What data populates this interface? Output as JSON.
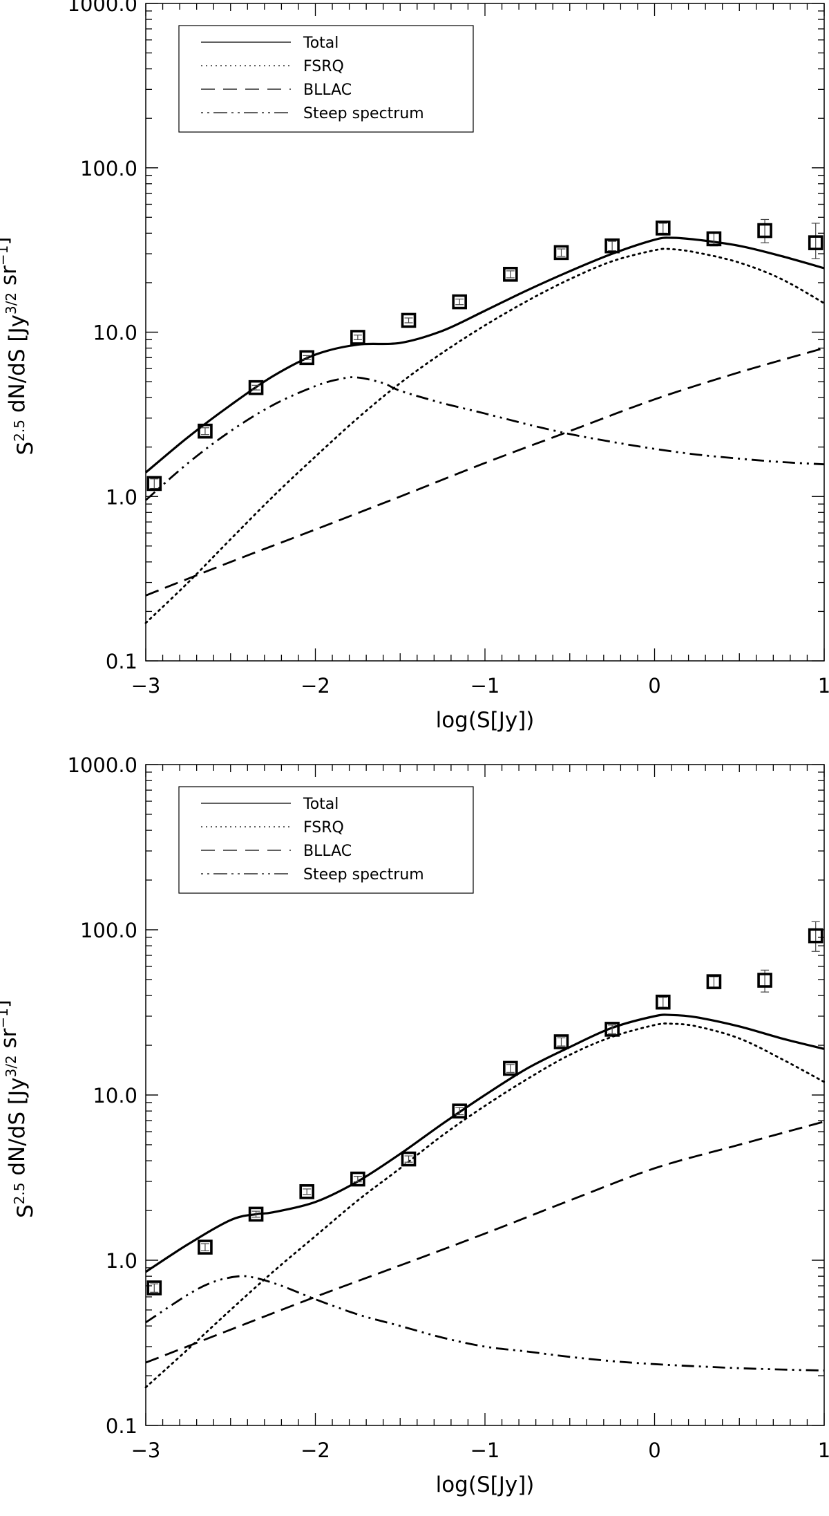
{
  "chart_data": [
    {
      "type": "line",
      "xlabel": "log(S[Jy])",
      "ylabel": "S^2.5 dN/dS [Jy^3/2 sr^-1]",
      "xlim": [
        -3,
        1
      ],
      "ylim": [
        0.1,
        1000
      ],
      "yscale": "log",
      "x_ticks": [
        "−3",
        "−2",
        "−1",
        "0",
        "1"
      ],
      "y_ticks": [
        "1000.0",
        "100.0",
        "10.0",
        "1.0",
        "0.1"
      ],
      "legend_position": "top-left",
      "grid": false,
      "series": [
        {
          "name": "Total",
          "style": "solid",
          "x": [
            -3.0,
            -2.75,
            -2.5,
            -2.25,
            -2.0,
            -1.75,
            -1.5,
            -1.25,
            -1.0,
            -0.75,
            -0.5,
            -0.25,
            0.0,
            0.1,
            0.25,
            0.5,
            0.75,
            1.0
          ],
          "y": [
            1.4,
            2.3,
            3.6,
            5.4,
            7.3,
            8.4,
            8.6,
            10.2,
            13.5,
            18.0,
            23.5,
            30.0,
            36.5,
            37.5,
            36.5,
            33.5,
            29.0,
            24.5
          ]
        },
        {
          "name": "FSRQ",
          "style": "dotted",
          "x": [
            -3.0,
            -2.75,
            -2.5,
            -2.25,
            -2.0,
            -1.75,
            -1.5,
            -1.25,
            -1.0,
            -0.75,
            -0.5,
            -0.25,
            0.0,
            0.1,
            0.25,
            0.5,
            0.75,
            1.0
          ],
          "y": [
            0.17,
            0.3,
            0.55,
            1.0,
            1.75,
            3.0,
            4.9,
            7.5,
            11.0,
            15.5,
            21.0,
            27.0,
            31.5,
            32.0,
            30.5,
            26.5,
            21.0,
            15.0
          ]
        },
        {
          "name": "BLLAC",
          "style": "dashed",
          "x": [
            -3.0,
            -2.5,
            -2.0,
            -1.5,
            -1.0,
            -0.5,
            0.0,
            0.5,
            1.0
          ],
          "y": [
            0.25,
            0.4,
            0.63,
            1.0,
            1.6,
            2.5,
            3.9,
            5.7,
            8.0
          ]
        },
        {
          "name": "Steep spectrum",
          "style": "dash-dot-dot",
          "x": [
            -3.0,
            -2.75,
            -2.5,
            -2.25,
            -2.0,
            -1.85,
            -1.75,
            -1.6,
            -1.5,
            -1.25,
            -1.0,
            -0.75,
            -0.5,
            -0.25,
            0.0,
            0.25,
            0.5,
            0.75,
            1.0
          ],
          "y": [
            0.95,
            1.6,
            2.5,
            3.6,
            4.7,
            5.2,
            5.3,
            4.9,
            4.4,
            3.7,
            3.2,
            2.75,
            2.4,
            2.15,
            1.95,
            1.8,
            1.7,
            1.62,
            1.57
          ]
        }
      ],
      "data_points": {
        "x": [
          -2.95,
          -2.65,
          -2.35,
          -2.05,
          -1.75,
          -1.45,
          -1.15,
          -0.85,
          -0.55,
          -0.25,
          0.05,
          0.35,
          0.65,
          0.95
        ],
        "y": [
          1.2,
          2.5,
          4.6,
          7.0,
          9.3,
          11.8,
          15.3,
          22.5,
          30.5,
          33.5,
          43.0,
          37.0,
          41.5,
          35.0
        ],
        "yerr_low": [
          1.12,
          2.38,
          4.45,
          6.8,
          9.0,
          11.4,
          14.7,
          21.4,
          28.9,
          31.3,
          40.0,
          33.5,
          35.0,
          28.0
        ],
        "yerr_high": [
          1.28,
          2.62,
          4.75,
          7.2,
          9.6,
          12.2,
          15.9,
          23.6,
          32.1,
          35.7,
          46.0,
          40.5,
          48.5,
          46.0
        ]
      }
    },
    {
      "type": "line",
      "xlabel": "log(S[Jy])",
      "ylabel": "S^2.5 dN/dS [Jy^3/2 sr^-1]",
      "xlim": [
        -3,
        1
      ],
      "ylim": [
        0.1,
        1000
      ],
      "yscale": "log",
      "x_ticks": [
        "−3",
        "−2",
        "−1",
        "0",
        "1"
      ],
      "y_ticks": [
        "1000.0",
        "100.0",
        "10.0",
        "1.0",
        "0.1"
      ],
      "legend_position": "top-left",
      "grid": false,
      "series": [
        {
          "name": "Total",
          "style": "solid",
          "x": [
            -3.0,
            -2.75,
            -2.5,
            -2.35,
            -2.25,
            -2.0,
            -1.75,
            -1.5,
            -1.25,
            -1.0,
            -0.75,
            -0.5,
            -0.25,
            0.0,
            0.1,
            0.25,
            0.5,
            0.75,
            1.0
          ],
          "y": [
            0.85,
            1.25,
            1.75,
            1.9,
            1.95,
            2.25,
            3.0,
            4.4,
            6.7,
            10.0,
            14.5,
            19.5,
            25.5,
            30.0,
            30.5,
            29.5,
            26.0,
            22.0,
            19.0
          ]
        },
        {
          "name": "FSRQ",
          "style": "dotted",
          "x": [
            -3.0,
            -2.75,
            -2.5,
            -2.25,
            -2.0,
            -1.75,
            -1.5,
            -1.25,
            -1.0,
            -0.75,
            -0.5,
            -0.25,
            0.0,
            0.1,
            0.25,
            0.5,
            0.75,
            1.0
          ],
          "y": [
            0.17,
            0.29,
            0.5,
            0.85,
            1.4,
            2.3,
            3.6,
            5.7,
            8.6,
            12.5,
            17.5,
            22.5,
            26.5,
            27.0,
            26.0,
            22.0,
            16.5,
            12.0
          ]
        },
        {
          "name": "BLLAC",
          "style": "dashed",
          "x": [
            -3.0,
            -2.5,
            -2.0,
            -1.5,
            -1.0,
            -0.5,
            0.0,
            0.5,
            1.0
          ],
          "y": [
            0.24,
            0.38,
            0.6,
            0.93,
            1.45,
            2.3,
            3.6,
            5.0,
            6.9
          ]
        },
        {
          "name": "Steep spectrum",
          "style": "dash-dot-dot",
          "x": [
            -3.0,
            -2.75,
            -2.6,
            -2.45,
            -2.35,
            -2.2,
            -2.0,
            -1.75,
            -1.5,
            -1.25,
            -1.0,
            -0.75,
            -0.5,
            -0.25,
            0.0,
            0.25,
            0.5,
            0.75,
            1.0
          ],
          "y": [
            0.42,
            0.62,
            0.74,
            0.8,
            0.78,
            0.7,
            0.58,
            0.47,
            0.4,
            0.34,
            0.3,
            0.28,
            0.26,
            0.245,
            0.235,
            0.228,
            0.222,
            0.218,
            0.215
          ]
        }
      ],
      "data_points": {
        "x": [
          -2.95,
          -2.65,
          -2.35,
          -2.05,
          -1.75,
          -1.45,
          -1.15,
          -0.85,
          -0.55,
          -0.25,
          0.05,
          0.35,
          0.65,
          0.95
        ],
        "y": [
          0.68,
          1.2,
          1.9,
          2.6,
          3.1,
          4.1,
          8.0,
          14.5,
          21.0,
          25.0,
          36.5,
          48.5,
          49.5,
          92.0
        ],
        "yerr_low": [
          0.64,
          1.14,
          1.82,
          2.5,
          2.98,
          3.92,
          7.6,
          13.7,
          19.8,
          23.5,
          34.0,
          45.0,
          42.0,
          74.0
        ],
        "yerr_high": [
          0.72,
          1.26,
          1.98,
          2.7,
          3.22,
          4.28,
          8.4,
          15.3,
          22.2,
          26.5,
          39.0,
          52.0,
          57.0,
          112.0
        ]
      }
    }
  ]
}
